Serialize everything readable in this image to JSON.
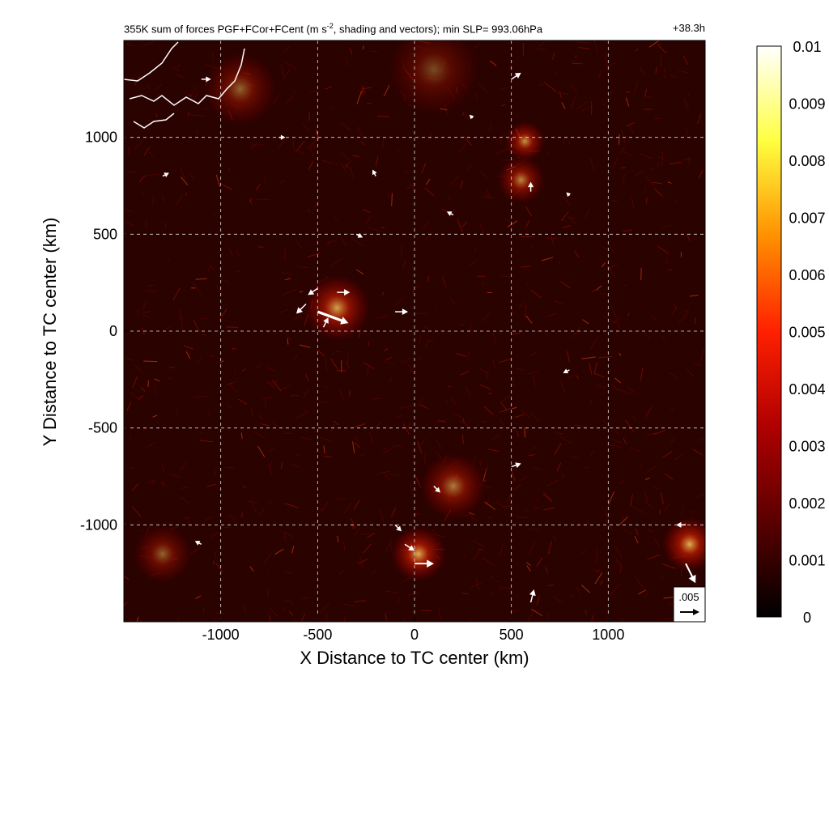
{
  "figure": {
    "title_left_prefix": "355K sum of forces PGF+FCor+FCent (m s",
    "title_left_sup": "-2",
    "title_left_suffix": ", shading and vectors); min SLP= 993.06hPa",
    "title_right": "+38.3h"
  },
  "chart_data": {
    "type": "heatmap",
    "xlabel": "X Distance to TC center (km)",
    "ylabel": "Y Distance to TC center (km)",
    "xlim": [
      -1500,
      1500
    ],
    "ylim": [
      -1500,
      1500
    ],
    "x_ticks": [
      -1000,
      -500,
      0,
      500,
      1000
    ],
    "y_ticks": [
      -1000,
      -500,
      0,
      500,
      1000
    ],
    "x_tick_labels": [
      "-1000",
      "-500",
      "0",
      "500",
      "1000"
    ],
    "y_tick_labels": [
      "-1000",
      "-500",
      "0",
      "500",
      "1000"
    ],
    "grid": true,
    "grid_style": "dashed",
    "colorbar": {
      "min": 0,
      "max": 0.01,
      "ticks": [
        0,
        0.001,
        0.002,
        0.003,
        0.004,
        0.005,
        0.006,
        0.007,
        0.008,
        0.009,
        0.01
      ],
      "tick_labels": [
        "0",
        "0.001",
        "0.002",
        "0.003",
        "0.004",
        "0.005",
        "0.006",
        "0.007",
        "0.008",
        "0.009",
        "0.01"
      ],
      "colors": [
        "#000000",
        "#5a0000",
        "#b00000",
        "#ff2000",
        "#ff9000",
        "#ffff40",
        "#ffffff"
      ]
    },
    "reference_vector": {
      "label": ".005",
      "magnitude": 0.005
    },
    "hotspots": [
      {
        "x": -400,
        "y": 120,
        "intensity": 0.0065,
        "r": 180
      },
      {
        "x": 570,
        "y": 980,
        "intensity": 0.006,
        "r": 110
      },
      {
        "x": 550,
        "y": 780,
        "intensity": 0.0055,
        "r": 130
      },
      {
        "x": 20,
        "y": -1150,
        "intensity": 0.007,
        "r": 150
      },
      {
        "x": 200,
        "y": -800,
        "intensity": 0.005,
        "r": 180
      },
      {
        "x": 1420,
        "y": -1100,
        "intensity": 0.007,
        "r": 150
      },
      {
        "x": -1300,
        "y": -1150,
        "intensity": 0.004,
        "r": 160
      },
      {
        "x": -900,
        "y": 1250,
        "intensity": 0.004,
        "r": 200
      },
      {
        "x": 100,
        "y": 1350,
        "intensity": 0.003,
        "r": 250
      }
    ],
    "vectors": [
      {
        "x": -500,
        "y": 100,
        "u": 0.0095,
        "v": -0.0035
      },
      {
        "x": -400,
        "y": 200,
        "u": 0.004,
        "v": 0.0
      },
      {
        "x": -560,
        "y": 140,
        "u": -0.003,
        "v": -0.003
      },
      {
        "x": -500,
        "y": 220,
        "u": -0.003,
        "v": -0.002
      },
      {
        "x": -470,
        "y": 20,
        "u": 0.0015,
        "v": 0.003
      },
      {
        "x": -100,
        "y": 100,
        "u": 0.004,
        "v": 0.0
      },
      {
        "x": 600,
        "y": 720,
        "u": 0.0,
        "v": 0.003
      },
      {
        "x": 500,
        "y": 1300,
        "u": 0.003,
        "v": 0.002
      },
      {
        "x": -1100,
        "y": 1300,
        "u": 0.003,
        "v": 0.0
      },
      {
        "x": -700,
        "y": 1000,
        "u": 0.002,
        "v": 0.0
      },
      {
        "x": -1300,
        "y": 800,
        "u": 0.002,
        "v": 0.001
      },
      {
        "x": 0,
        "y": -1200,
        "u": 0.006,
        "v": 0.0
      },
      {
        "x": -50,
        "y": -1100,
        "u": 0.003,
        "v": -0.002
      },
      {
        "x": -100,
        "y": -1000,
        "u": 0.002,
        "v": -0.002
      },
      {
        "x": 600,
        "y": -1400,
        "u": 0.001,
        "v": 0.004
      },
      {
        "x": 1400,
        "y": -1200,
        "u": 0.003,
        "v": -0.006
      },
      {
        "x": 1400,
        "y": -1000,
        "u": -0.003,
        "v": 0.0
      },
      {
        "x": 500,
        "y": -700,
        "u": 0.003,
        "v": 0.001
      },
      {
        "x": 100,
        "y": -800,
        "u": 0.002,
        "v": -0.002
      },
      {
        "x": -300,
        "y": 500,
        "u": 0.002,
        "v": -0.001
      },
      {
        "x": 200,
        "y": 600,
        "u": -0.002,
        "v": 0.001
      },
      {
        "x": 800,
        "y": 700,
        "u": -0.001,
        "v": 0.001
      },
      {
        "x": 800,
        "y": -200,
        "u": -0.002,
        "v": -0.001
      },
      {
        "x": -1100,
        "y": -1100,
        "u": -0.002,
        "v": 0.001
      },
      {
        "x": 300,
        "y": 1100,
        "u": -0.001,
        "v": 0.001
      },
      {
        "x": -200,
        "y": 800,
        "u": -0.001,
        "v": 0.002
      }
    ]
  }
}
